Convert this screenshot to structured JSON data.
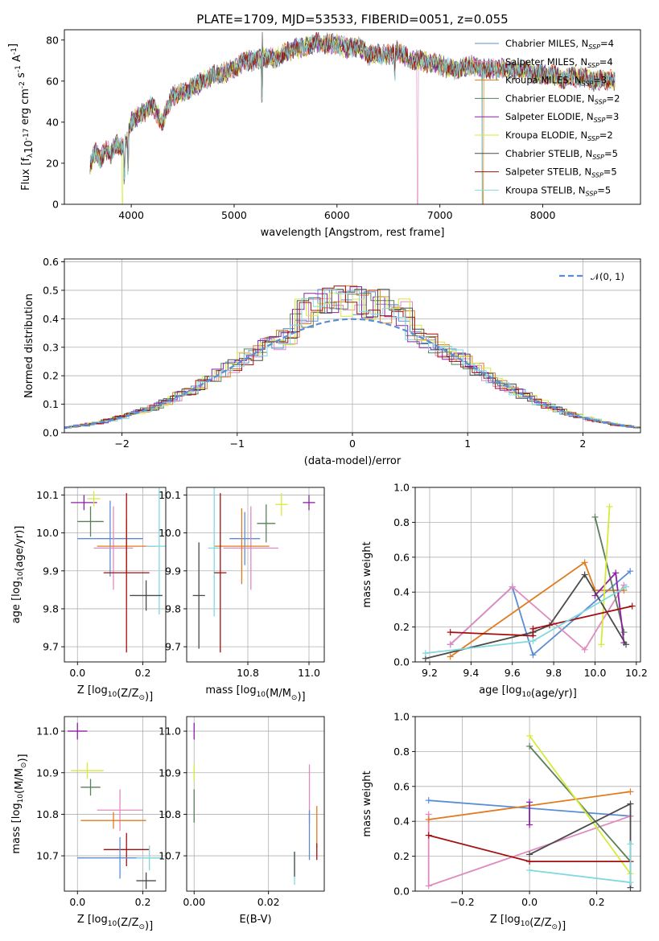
{
  "chart_data": [
    {
      "type": "line",
      "title": "PLATE=1709, MJD=53533, FIBERID=0051, z=0.055",
      "xlabel": "wavelength [Angstrom, rest frame]",
      "ylabel": "Flux [f_λ10^-17 erg cm^-2 s^-1 A^-1]",
      "xlim": [
        3350,
        8950
      ],
      "ylim": [
        0,
        85
      ],
      "xticks": [
        "4000",
        "5000",
        "6000",
        "7000",
        "8000"
      ],
      "yticks": [
        "0",
        "20",
        "40",
        "60",
        "80"
      ],
      "legend_position": "upper-right",
      "legend": [
        {
          "label": "Chabrier MILES, N",
          "sub": "SSP",
          "val": "=4",
          "color": "#5b8dd6"
        },
        {
          "label": "Salpeter MILES, N",
          "sub": "SSP",
          "val": "=4",
          "color": "#e08bc0"
        },
        {
          "label": "Kroupa MILES, N",
          "sub": "SSP",
          "val": "=3",
          "color": "#e07b1f"
        },
        {
          "label": "Chabrier ELODIE, N",
          "sub": "SSP",
          "val": "=2",
          "color": "#5a7f5a"
        },
        {
          "label": "Salpeter ELODIE, N",
          "sub": "SSP",
          "val": "=3",
          "color": "#8e1fa8"
        },
        {
          "label": "Kroupa ELODIE, N",
          "sub": "SSP",
          "val": "=2",
          "color": "#d6ea3a"
        },
        {
          "label": "Chabrier STELIB, N",
          "sub": "SSP",
          "val": "=5",
          "color": "#4a4a4a"
        },
        {
          "label": "Salpeter STELIB, N",
          "sub": "SSP",
          "val": "=5",
          "color": "#a30f0f"
        },
        {
          "label": "Kroupa STELIB, N",
          "sub": "SSP",
          "val": "=5",
          "color": "#7fd9de"
        }
      ],
      "spectrum_x": [
        3600,
        3650,
        3700,
        3750,
        3800,
        3850,
        3900,
        3950,
        4000,
        4100,
        4200,
        4300,
        4400,
        4500,
        4600,
        4700,
        4800,
        4900,
        5000,
        5100,
        5200,
        5300,
        5400,
        5500,
        5600,
        5700,
        5800,
        5900,
        6000,
        6100,
        6200,
        6300,
        6400,
        6500,
        6600,
        6700,
        6800,
        6900,
        7000,
        7100,
        7200,
        7300,
        7400,
        7500,
        7600,
        7700,
        7800,
        7900,
        8000,
        8100,
        8200,
        8300,
        8400,
        8500,
        8600,
        8700
      ],
      "spectrum_y": [
        18,
        26,
        22,
        27,
        24,
        30,
        27,
        30,
        40,
        44,
        48,
        40,
        53,
        55,
        57,
        60,
        63,
        64,
        66,
        70,
        70,
        72,
        71,
        74,
        76,
        77,
        79,
        78,
        78,
        76,
        77,
        73,
        73,
        73,
        74,
        71,
        70,
        69,
        68,
        66,
        66,
        68,
        66,
        66,
        66,
        65,
        66,
        64,
        63,
        63,
        61,
        62,
        62,
        60,
        61,
        60
      ]
    },
    {
      "type": "line",
      "title": "",
      "xlabel": "(data-model)/error",
      "ylabel": "Normed distribution",
      "xlim": [
        -2.5,
        2.5
      ],
      "ylim": [
        0,
        0.61
      ],
      "xticks": [
        "−2",
        "−1",
        "0",
        "1",
        "2"
      ],
      "yticks": [
        "0.0",
        "0.1",
        "0.2",
        "0.3",
        "0.4",
        "0.5",
        "0.6"
      ],
      "legend": [
        {
          "label": "𝒩(0, 1)",
          "color": "#5b8dd6"
        }
      ],
      "legend_position": "upper-right",
      "hist_bin_width": 0.1,
      "hist_peak_values": [
        0.58,
        0.43,
        0.55,
        0.45,
        0.48,
        0.46,
        0.5,
        0.46,
        0.44,
        0.42
      ]
    },
    {
      "type": "scatter",
      "xlabel": "Z [log10(Z/Z⊙)]",
      "ylabel": "age  [log10(age/yr)]",
      "xlim": [
        -0.04,
        0.27
      ],
      "ylim": [
        9.66,
        10.12
      ],
      "xticks": [
        "0.0",
        "0.2"
      ],
      "yticks": [
        "9.7",
        "9.8",
        "9.9",
        "10.0",
        "10.1"
      ],
      "points": [
        {
          "x": 0.02,
          "y": 10.08,
          "xerr": 0.04,
          "yerr": 0.02,
          "color": "#8e1fa8"
        },
        {
          "x": 0.05,
          "y": 10.09,
          "xerr": 0.02,
          "yerr": 0.02,
          "color": "#d6ea3a"
        },
        {
          "x": 0.04,
          "y": 10.03,
          "xerr": 0.04,
          "yerr": 0.04,
          "color": "#5a7f5a"
        },
        {
          "x": 0.1,
          "y": 9.985,
          "xerr": 0.1,
          "yerr": 0.1,
          "color": "#5b8dd6"
        },
        {
          "x": 0.11,
          "y": 9.96,
          "xerr": 0.06,
          "yerr": 0.11,
          "color": "#e08bc0"
        },
        {
          "x": 0.15,
          "y": 9.965,
          "xerr": 0.09,
          "yerr": 0.07,
          "color": "#e07b1f"
        },
        {
          "x": 0.25,
          "y": 9.965,
          "xerr": 0.04,
          "yerr": 0.18,
          "color": "#7fd9de"
        },
        {
          "x": 0.15,
          "y": 9.895,
          "xerr": 0.07,
          "yerr": 0.21,
          "color": "#a30f0f"
        },
        {
          "x": 0.21,
          "y": 9.835,
          "xerr": 0.05,
          "yerr": 0.04,
          "color": "#4a4a4a"
        }
      ]
    },
    {
      "type": "scatter",
      "xlabel": "mass [log10(M/M⊙)]",
      "ylabel": "",
      "xlim": [
        10.6,
        11.05
      ],
      "ylim": [
        9.66,
        10.12
      ],
      "xticks": [
        "10.8",
        "11.0"
      ],
      "yticks": [
        "9.7",
        "9.8",
        "9.9",
        "10.0",
        "10.1"
      ],
      "points": [
        {
          "x": 11.0,
          "y": 10.08,
          "xerr": 0.02,
          "yerr": 0.02,
          "color": "#8e1fa8"
        },
        {
          "x": 10.91,
          "y": 10.075,
          "xerr": 0.02,
          "yerr": 0.03,
          "color": "#d6ea3a"
        },
        {
          "x": 10.86,
          "y": 10.025,
          "xerr": 0.03,
          "yerr": 0.05,
          "color": "#5a7f5a"
        },
        {
          "x": 10.79,
          "y": 9.985,
          "xerr": 0.05,
          "yerr": 0.07,
          "color": "#5b8dd6"
        },
        {
          "x": 10.81,
          "y": 9.96,
          "xerr": 0.09,
          "yerr": 0.11,
          "color": "#e08bc0"
        },
        {
          "x": 10.78,
          "y": 9.965,
          "xerr": 0.09,
          "yerr": 0.1,
          "color": "#e07b1f"
        },
        {
          "x": 10.69,
          "y": 9.96,
          "xerr": 0.02,
          "yerr": 0.18,
          "color": "#7fd9de"
        },
        {
          "x": 10.71,
          "y": 9.895,
          "xerr": 0.02,
          "yerr": 0.21,
          "color": "#a30f0f"
        },
        {
          "x": 10.64,
          "y": 9.835,
          "xerr": 0.02,
          "yerr": 0.14,
          "color": "#4a4a4a"
        }
      ]
    },
    {
      "type": "line",
      "xlabel": "age  [log10(age/yr)]",
      "ylabel": "mass weight",
      "xlim": [
        9.13,
        10.22
      ],
      "ylim": [
        0,
        1
      ],
      "xticks": [
        "9.2",
        "9.4",
        "9.6",
        "9.8",
        "10.0",
        "10.2"
      ],
      "yticks": [
        "0.0",
        "0.2",
        "0.4",
        "0.6",
        "0.8",
        "1.0"
      ],
      "series": [
        {
          "color": "#5b8dd6",
          "x": [
            9.3,
            9.6,
            9.7,
            10.17
          ],
          "y": [
            0.1,
            0.43,
            0.04,
            0.52
          ]
        },
        {
          "color": "#e08bc0",
          "x": [
            9.3,
            9.6,
            9.95,
            10.14
          ],
          "y": [
            0.1,
            0.43,
            0.07,
            0.44
          ]
        },
        {
          "color": "#e07b1f",
          "x": [
            9.3,
            9.95,
            10.0,
            10.14
          ],
          "y": [
            0.03,
            0.57,
            0.41,
            0.41
          ]
        },
        {
          "color": "#5a7f5a",
          "x": [
            10.0,
            10.14
          ],
          "y": [
            0.83,
            0.17
          ]
        },
        {
          "color": "#8e1fa8",
          "x": [
            10.0,
            10.1,
            10.14
          ],
          "y": [
            0.38,
            0.51,
            0.11
          ]
        },
        {
          "color": "#d6ea3a",
          "x": [
            10.03,
            10.07
          ],
          "y": [
            0.1,
            0.89
          ]
        },
        {
          "color": "#4a4a4a",
          "x": [
            9.18,
            9.7,
            9.78,
            9.95,
            10.15
          ],
          "y": [
            0.02,
            0.17,
            0.21,
            0.5,
            0.1
          ]
        },
        {
          "color": "#a30f0f",
          "x": [
            9.3,
            9.7,
            9.7,
            10.18
          ],
          "y": [
            0.17,
            0.15,
            0.19,
            0.32
          ]
        },
        {
          "color": "#7fd9de",
          "x": [
            9.18,
            9.7,
            10.15
          ],
          "y": [
            0.05,
            0.12,
            0.43
          ]
        }
      ]
    },
    {
      "type": "scatter",
      "xlabel": "Z [log10(Z/Z⊙)]",
      "ylabel": "mass [log10(M/M⊙)]",
      "xlim": [
        -0.04,
        0.27
      ],
      "ylim": [
        10.615,
        11.035
      ],
      "xticks": [
        "0.0",
        "0.2"
      ],
      "yticks": [
        "10.7",
        "10.8",
        "10.9",
        "11.0"
      ],
      "points": [
        {
          "x": 0.0,
          "y": 11.0,
          "xerr": 0.03,
          "yerr": 0.02,
          "color": "#8e1fa8"
        },
        {
          "x": 0.03,
          "y": 10.905,
          "xerr": 0.05,
          "yerr": 0.02,
          "color": "#d6ea3a"
        },
        {
          "x": 0.04,
          "y": 10.865,
          "xerr": 0.03,
          "yerr": 0.02,
          "color": "#5a7f5a"
        },
        {
          "x": 0.13,
          "y": 10.81,
          "xerr": 0.07,
          "yerr": 0.05,
          "color": "#e08bc0"
        },
        {
          "x": 0.11,
          "y": 10.785,
          "xerr": 0.1,
          "yerr": 0.02,
          "color": "#e07b1f"
        },
        {
          "x": 0.15,
          "y": 10.715,
          "xerr": 0.07,
          "yerr": 0.04,
          "color": "#a30f0f"
        },
        {
          "x": 0.13,
          "y": 10.695,
          "xerr": 0.13,
          "yerr": 0.05,
          "color": "#5b8dd6"
        },
        {
          "x": 0.22,
          "y": 10.695,
          "xerr": 0.04,
          "yerr": 0.03,
          "color": "#7fd9de"
        },
        {
          "x": 0.21,
          "y": 10.64,
          "xerr": 0.03,
          "yerr": 0.02,
          "color": "#4a4a4a"
        }
      ]
    },
    {
      "type": "scatter",
      "xlabel": "E(B-V)",
      "ylabel": "",
      "xlim": [
        -0.002,
        0.035
      ],
      "ylim": [
        10.615,
        11.035
      ],
      "xticks": [
        "0.00",
        "0.02"
      ],
      "yticks": [
        "10.7",
        "10.8",
        "10.9",
        "11.0"
      ],
      "points": [
        {
          "x": 0.0,
          "y": 11.0,
          "yerr": 0.02,
          "color": "#8e1fa8"
        },
        {
          "x": 0.0,
          "y": 10.9,
          "yerr": 0.02,
          "color": "#d6ea3a"
        },
        {
          "x": 0.0,
          "y": 10.82,
          "yerr": 0.04,
          "color": "#5a7f5a"
        },
        {
          "x": 0.031,
          "y": 10.85,
          "yerr": 0.07,
          "color": "#e08bc0"
        },
        {
          "x": 0.033,
          "y": 10.77,
          "yerr": 0.05,
          "color": "#e07b1f"
        },
        {
          "x": 0.033,
          "y": 10.71,
          "yerr": 0.02,
          "color": "#a30f0f"
        },
        {
          "x": 0.031,
          "y": 10.75,
          "yerr": 0.06,
          "color": "#5b8dd6"
        },
        {
          "x": 0.027,
          "y": 10.67,
          "yerr": 0.04,
          "color": "#7fd9de"
        },
        {
          "x": 0.027,
          "y": 10.68,
          "yerr": 0.03,
          "color": "#4a4a4a"
        }
      ]
    },
    {
      "type": "line",
      "xlabel": "Z [log10(Z/Z⊙)]",
      "ylabel": "mass weight",
      "xlim": [
        -0.34,
        0.33
      ],
      "ylim": [
        0,
        1
      ],
      "xticks": [
        "−0.2",
        "0.0",
        "0.2"
      ],
      "yticks": [
        "0.0",
        "0.2",
        "0.4",
        "0.6",
        "0.8",
        "1.0"
      ],
      "series": [
        {
          "color": "#5b8dd6",
          "x": [
            -0.3,
            0.3
          ],
          "y": [
            0.52,
            0.43
          ]
        },
        {
          "color": "#e08bc0",
          "x": [
            -0.3,
            -0.3,
            0.3
          ],
          "y": [
            0.44,
            0.03,
            0.43
          ]
        },
        {
          "color": "#e07b1f",
          "x": [
            -0.3,
            0.3
          ],
          "y": [
            0.41,
            0.57
          ]
        },
        {
          "color": "#5a7f5a",
          "x": [
            0.0,
            0.3
          ],
          "y": [
            0.83,
            0.17
          ]
        },
        {
          "color": "#8e1fa8",
          "x": [
            0.0,
            0.0
          ],
          "y": [
            0.51,
            0.38
          ]
        },
        {
          "color": "#d6ea3a",
          "x": [
            0.0,
            0.3
          ],
          "y": [
            0.89,
            0.1
          ]
        },
        {
          "color": "#4a4a4a",
          "x": [
            0.0,
            0.3,
            0.3
          ],
          "y": [
            0.21,
            0.5,
            0.02
          ]
        },
        {
          "color": "#a30f0f",
          "x": [
            -0.3,
            0.0,
            0.3
          ],
          "y": [
            0.32,
            0.17,
            0.17
          ]
        },
        {
          "color": "#7fd9de",
          "x": [
            0.0,
            0.3,
            0.3
          ],
          "y": [
            0.12,
            0.05,
            0.27
          ]
        }
      ]
    }
  ]
}
